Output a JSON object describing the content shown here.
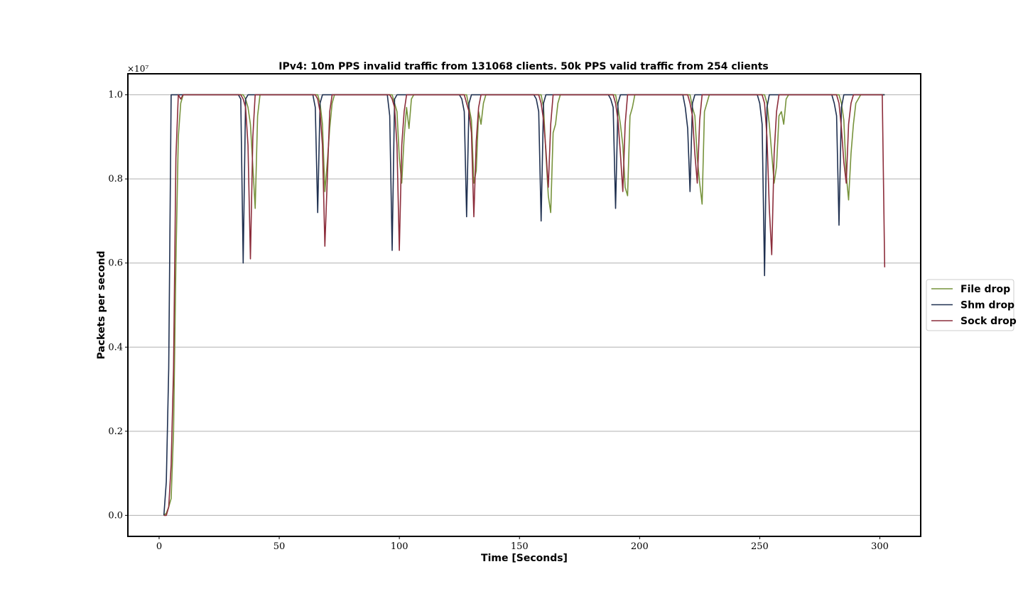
{
  "chart_data": {
    "type": "line",
    "title": "IPv4: 10m PPS invalid traffic from 131068 clients. 50k PPS valid traffic from 254 clients",
    "xlabel": "Time [Seconds]",
    "ylabel": "Packets per second",
    "y_offset_text": "×10⁷",
    "xlim": [
      -13,
      317
    ],
    "ylim": [
      -0.05,
      1.05
    ],
    "xticks": [
      0,
      50,
      100,
      150,
      200,
      250,
      300
    ],
    "xtick_labels": [
      "0",
      "50",
      "100",
      "150",
      "200",
      "250",
      "300"
    ],
    "yticks": [
      0.0,
      0.2,
      0.4,
      0.6,
      0.8,
      1.0
    ],
    "ytick_labels": [
      "0.0",
      "0.2",
      "0.4",
      "0.6",
      "0.8",
      "1.0"
    ],
    "grid": "horizontal",
    "legend_position": "right-outside",
    "series": [
      {
        "name": "File drop",
        "color": "#77933c",
        "x": [
          2,
          3,
          4,
          5,
          6,
          7,
          8,
          9,
          10,
          11,
          12,
          35,
          36,
          37,
          38,
          39,
          40,
          41,
          42,
          66,
          67,
          68,
          69,
          70,
          71,
          72,
          73,
          74,
          97,
          98,
          99,
          100,
          101,
          102,
          103,
          104,
          105,
          106,
          128,
          129,
          130,
          131,
          132,
          133,
          134,
          135,
          136,
          137,
          159,
          160,
          161,
          162,
          163,
          164,
          165,
          166,
          167,
          168,
          190,
          191,
          192,
          193,
          194,
          195,
          196,
          197,
          198,
          199,
          221,
          222,
          223,
          224,
          225,
          226,
          227,
          228,
          229,
          230,
          252,
          253,
          254,
          255,
          256,
          257,
          258,
          259,
          260,
          261,
          262,
          283,
          284,
          285,
          286,
          287,
          288,
          289,
          290,
          291,
          292,
          293,
          302
        ],
        "values": [
          0.0,
          0.005,
          0.02,
          0.04,
          0.2,
          0.6,
          0.9,
          0.98,
          1.0,
          1.0,
          1.0,
          1.0,
          0.99,
          0.97,
          0.93,
          0.83,
          0.73,
          0.95,
          1.0,
          1.0,
          0.98,
          0.93,
          0.77,
          0.84,
          0.92,
          0.98,
          1.0,
          1.0,
          1.0,
          0.98,
          0.96,
          0.85,
          0.79,
          0.9,
          0.97,
          0.92,
          0.99,
          1.0,
          1.0,
          0.97,
          0.94,
          0.79,
          0.82,
          0.96,
          0.93,
          0.98,
          1.0,
          1.0,
          1.0,
          0.97,
          0.86,
          0.76,
          0.72,
          0.91,
          0.93,
          0.98,
          1.0,
          1.0,
          1.0,
          0.97,
          0.93,
          0.88,
          0.78,
          0.76,
          0.95,
          0.97,
          1.0,
          1.0,
          1.0,
          0.97,
          0.95,
          0.85,
          0.79,
          0.74,
          0.96,
          0.98,
          1.0,
          1.0,
          1.0,
          0.98,
          0.93,
          0.86,
          0.79,
          0.83,
          0.95,
          0.96,
          0.93,
          0.99,
          1.0,
          1.0,
          0.98,
          0.94,
          0.81,
          0.75,
          0.86,
          0.93,
          0.98,
          0.99,
          1.0,
          1.0,
          1.0
        ]
      },
      {
        "name": "Shm drop",
        "color": "#1f3050",
        "x": [
          2,
          3,
          4,
          5,
          6,
          33,
          34,
          35,
          36,
          37,
          64,
          65,
          66,
          67,
          68,
          95,
          96,
          97,
          98,
          99,
          125,
          126,
          127,
          128,
          129,
          130,
          156,
          157,
          158,
          159,
          160,
          161,
          187,
          188,
          189,
          190,
          191,
          192,
          218,
          219,
          220,
          221,
          222,
          223,
          249,
          250,
          251,
          252,
          253,
          254,
          280,
          281,
          282,
          283,
          284,
          285,
          302
        ],
        "values": [
          0.0,
          0.08,
          0.35,
          1.0,
          1.0,
          1.0,
          0.99,
          0.6,
          0.99,
          1.0,
          1.0,
          0.97,
          0.72,
          0.98,
          1.0,
          1.0,
          0.95,
          0.63,
          0.99,
          1.0,
          1.0,
          0.99,
          0.96,
          0.71,
          0.98,
          1.0,
          1.0,
          0.99,
          0.96,
          0.7,
          0.98,
          1.0,
          1.0,
          0.99,
          0.97,
          0.73,
          0.98,
          1.0,
          1.0,
          0.97,
          0.92,
          0.77,
          0.98,
          1.0,
          1.0,
          0.98,
          0.93,
          0.57,
          0.97,
          1.0,
          1.0,
          0.98,
          0.95,
          0.69,
          0.97,
          1.0,
          1.0
        ]
      },
      {
        "name": "Sock drop",
        "color": "#8c2d3b",
        "x": [
          2,
          3,
          4,
          5,
          6,
          7,
          8,
          9,
          10,
          34,
          35,
          36,
          37,
          38,
          39,
          40,
          65,
          66,
          67,
          68,
          69,
          70,
          71,
          72,
          96,
          97,
          98,
          99,
          100,
          101,
          102,
          103,
          127,
          128,
          129,
          130,
          131,
          132,
          133,
          134,
          158,
          159,
          160,
          161,
          162,
          163,
          164,
          189,
          190,
          191,
          192,
          193,
          194,
          195,
          220,
          221,
          222,
          223,
          224,
          225,
          226,
          251,
          252,
          253,
          254,
          255,
          256,
          257,
          258,
          282,
          283,
          284,
          285,
          286,
          287,
          288,
          289,
          301,
          302
        ],
        "values": [
          0.0,
          0.0,
          0.02,
          0.12,
          0.35,
          0.85,
          1.0,
          0.99,
          1.0,
          1.0,
          0.99,
          0.97,
          0.88,
          0.61,
          0.9,
          1.0,
          1.0,
          0.99,
          0.96,
          0.88,
          0.64,
          0.8,
          0.96,
          1.0,
          1.0,
          0.99,
          0.97,
          0.88,
          0.63,
          0.88,
          0.96,
          1.0,
          1.0,
          0.98,
          0.96,
          0.91,
          0.71,
          0.89,
          0.97,
          1.0,
          1.0,
          0.98,
          0.94,
          0.87,
          0.78,
          0.93,
          1.0,
          1.0,
          0.98,
          0.94,
          0.86,
          0.77,
          0.93,
          1.0,
          1.0,
          0.98,
          0.95,
          0.86,
          0.79,
          0.94,
          1.0,
          1.0,
          0.98,
          0.9,
          0.73,
          0.62,
          0.86,
          0.96,
          1.0,
          1.0,
          0.98,
          0.92,
          0.84,
          0.79,
          0.93,
          0.98,
          1.0,
          1.0,
          0.59
        ]
      }
    ]
  }
}
